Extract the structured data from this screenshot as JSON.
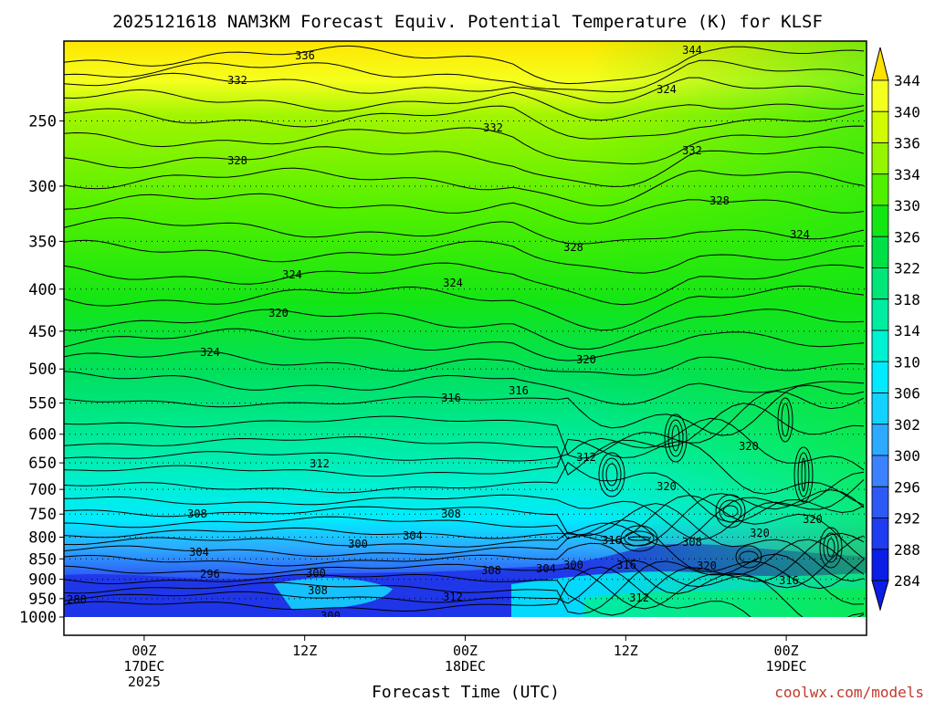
{
  "chart_data": {
    "type": "heatmap",
    "title": "2025121618 NAM3KM Forecast Equiv. Potential Temperature (K) for KLSF",
    "xlabel": "Forecast Time (UTC)",
    "ylabel": "",
    "y_ticks": [
      250,
      300,
      350,
      400,
      450,
      500,
      550,
      600,
      650,
      700,
      750,
      800,
      850,
      900,
      950,
      1000
    ],
    "y_tick_labels": [
      "250",
      "300",
      "350",
      "400",
      "450",
      "500",
      "550",
      "600",
      "650",
      "700",
      "750",
      "800",
      "850",
      "900",
      "950",
      "1000"
    ],
    "ylim": [
      1000,
      200
    ],
    "y_scale": "log",
    "x_ticks": [
      {
        "hour": 6,
        "lines": [
          "00Z",
          "17DEC",
          "2025"
        ]
      },
      {
        "hour": 18,
        "lines": [
          "12Z"
        ]
      },
      {
        "hour": 30,
        "lines": [
          "00Z",
          "18DEC"
        ]
      },
      {
        "hour": 42,
        "lines": [
          "12Z"
        ]
      },
      {
        "hour": 54,
        "lines": [
          "00Z",
          "19DEC"
        ]
      }
    ],
    "xlim": [
      0,
      60
    ],
    "colorbar_levels": [
      "284",
      "288",
      "292",
      "296",
      "300",
      "302",
      "306",
      "310",
      "314",
      "318",
      "322",
      "326",
      "330",
      "334",
      "336",
      "340",
      "344"
    ],
    "colorbar_colors": [
      "#0a1ee6",
      "#1e3cf0",
      "#2d5af5",
      "#3c82ff",
      "#2daaff",
      "#14d2ff",
      "#00ebff",
      "#00f0d2",
      "#00eca0",
      "#00e678",
      "#00e046",
      "#14e614",
      "#50f000",
      "#96f500",
      "#d2fa00",
      "#f5ff1e",
      "#ffe100"
    ],
    "contour_labels": [
      "344",
      "336",
      "332",
      "332",
      "332",
      "328",
      "328",
      "328",
      "324",
      "324",
      "324",
      "320",
      "320",
      "324",
      "316",
      "316",
      "320",
      "320",
      "312",
      "312",
      "320",
      "308",
      "308",
      "304",
      "300",
      "304",
      "296",
      "300",
      "308",
      "304",
      "300",
      "312",
      "316",
      "308",
      "320",
      "320",
      "316",
      "312",
      "316",
      "288",
      "308",
      "300",
      "324"
    ],
    "ground_color": "#a0522d"
  },
  "credit": "coolwx.com/models"
}
